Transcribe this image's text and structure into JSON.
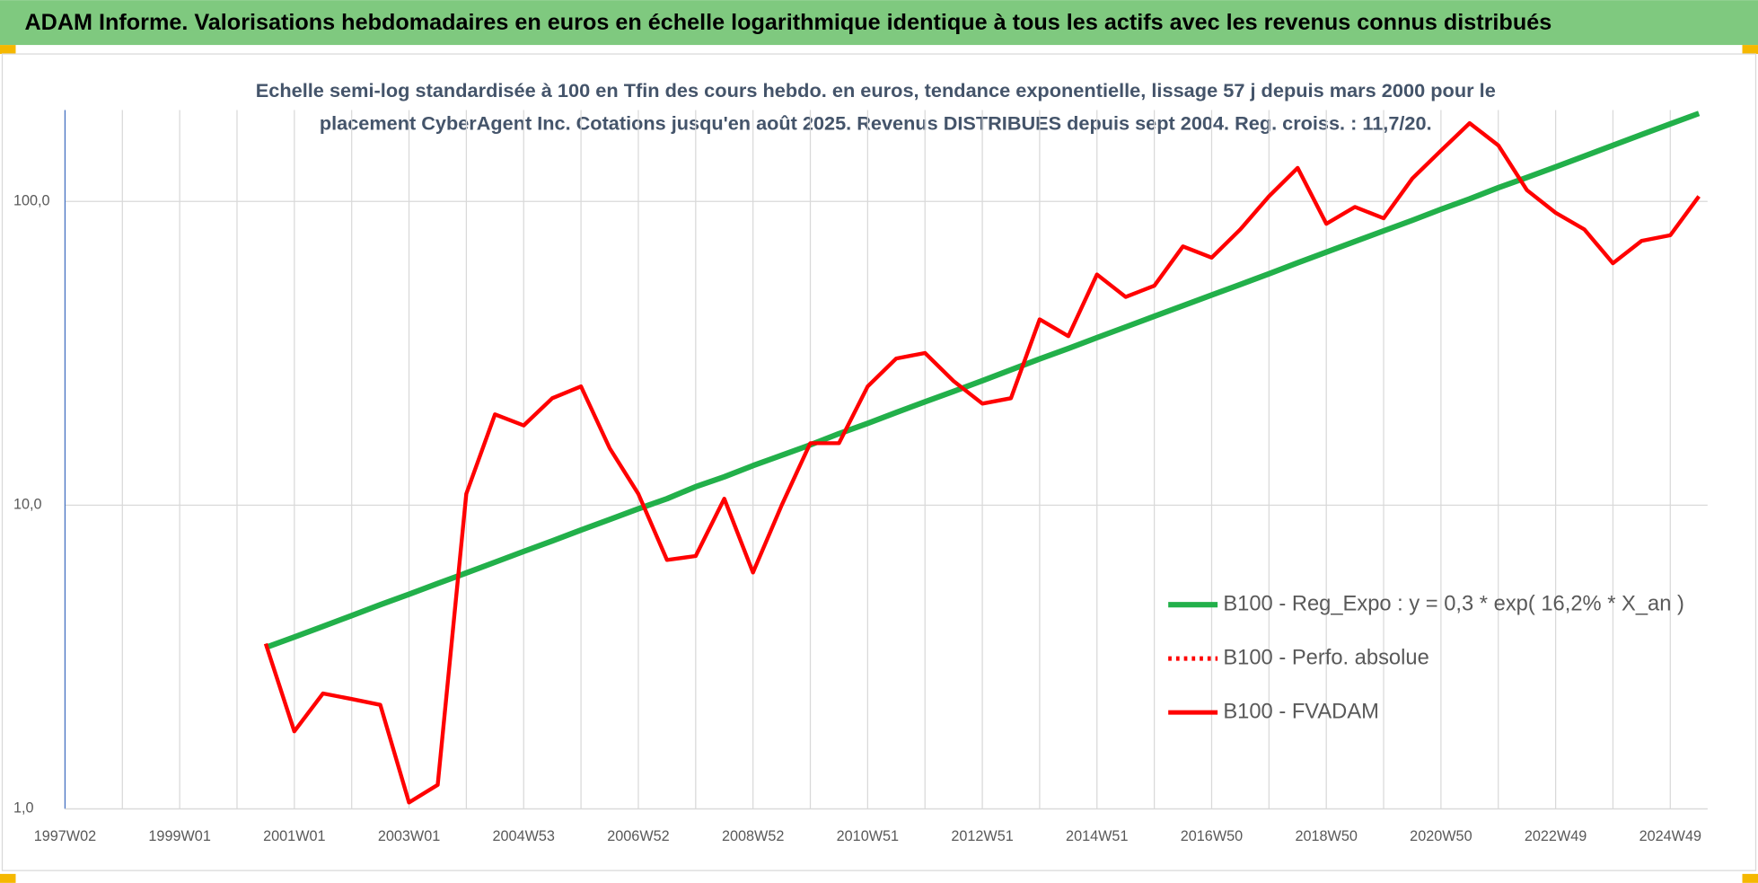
{
  "chart_data": {
    "type": "line",
    "header": "ADAM Informe. Valorisations hebdomadaires en euros en échelle logarithmique identique à tous les actifs avec les revenus connus distribués",
    "title": [
      "Echelle semi-log standardisée à 100 en Tfin des cours hebdo. en euros, tendance exponentielle, lissage 57 j depuis mars 2000 pour le",
      "placement CyberAgent Inc. Cotations jusqu'en août 2025. Revenus DISTRIBUES depuis sept 2004. Reg. croiss. : 11,7/20."
    ],
    "log_scale": true,
    "grid": true,
    "ylim": [
      1,
      200
    ],
    "yticks": [
      {
        "value": 1,
        "label": "1,0"
      },
      {
        "value": 10,
        "label": "10,0"
      },
      {
        "value": 100,
        "label": "100,0"
      }
    ],
    "categories": [
      "1997W02",
      null,
      null,
      null,
      "1999W01",
      null,
      null,
      null,
      "2001W01",
      null,
      null,
      null,
      "2003W01",
      null,
      null,
      null,
      "2004W53",
      null,
      null,
      null,
      "2006W52",
      null,
      null,
      null,
      "2008W52",
      null,
      null,
      null,
      "2010W51",
      null,
      null,
      null,
      "2012W51",
      null,
      null,
      null,
      "2014W51",
      null,
      null,
      null,
      "2016W50",
      null,
      null,
      null,
      "2018W50",
      null,
      null,
      null,
      "2020W50",
      null,
      null,
      null,
      "2022W49",
      null,
      null,
      null,
      "2024W49",
      null
    ],
    "series": [
      {
        "name": "B100 - Reg_Expo : y = 0,3 * exp( 16,2% *  X_an )",
        "color": "#22b04a",
        "style": "solid",
        "values": [
          null,
          null,
          null,
          null,
          null,
          null,
          null,
          3.4,
          3.68,
          3.99,
          4.33,
          4.7,
          5.09,
          5.52,
          5.98,
          6.49,
          7.04,
          7.63,
          8.28,
          8.97,
          9.73,
          10.5,
          11.5,
          12.4,
          13.5,
          14.6,
          15.8,
          17.2,
          18.6,
          20.2,
          21.9,
          23.7,
          25.7,
          27.9,
          30.3,
          32.8,
          35.6,
          38.6,
          41.9,
          45.4,
          49.2,
          53.3,
          57.8,
          62.8,
          68.1,
          73.8,
          80.0,
          86.7,
          94.2,
          102,
          111,
          120,
          130,
          141,
          153,
          166,
          180,
          195
        ]
      },
      {
        "name": "B100 - Perfo. absolue",
        "color": "#ff0000",
        "style": "dotted",
        "values": [
          null,
          null,
          null,
          null,
          null,
          null,
          null,
          null,
          null,
          null,
          null,
          null,
          null,
          null,
          null,
          null,
          null,
          null,
          null,
          null,
          null,
          null,
          null,
          null,
          null,
          null,
          null,
          null,
          null,
          null,
          null,
          null,
          null,
          null,
          null,
          null,
          null,
          null,
          null,
          null,
          null,
          null,
          null,
          null,
          null,
          null,
          null,
          null,
          null,
          null,
          null,
          null,
          null,
          null,
          null,
          null,
          null,
          null
        ]
      },
      {
        "name": "B100 - FVADAM",
        "color": "#ff0000",
        "style": "solid",
        "values": [
          null,
          null,
          null,
          null,
          null,
          null,
          null,
          3.5,
          1.8,
          2.4,
          2.3,
          2.2,
          1.05,
          1.2,
          10.9,
          19.9,
          18.3,
          22.5,
          24.6,
          15.4,
          10.9,
          6.6,
          6.8,
          10.5,
          6.0,
          10.0,
          16.0,
          16.0,
          24.6,
          30.4,
          31.7,
          25.6,
          21.6,
          22.5,
          40.9,
          36.0,
          57.5,
          48.5,
          52.8,
          71.1,
          65.3,
          80.9,
          104,
          129,
          84.4,
          95.9,
          88.0,
          119,
          147,
          181,
          153,
          109,
          91.8,
          80.9,
          62.6,
          74.2,
          77.4,
          104
        ]
      }
    ]
  }
}
